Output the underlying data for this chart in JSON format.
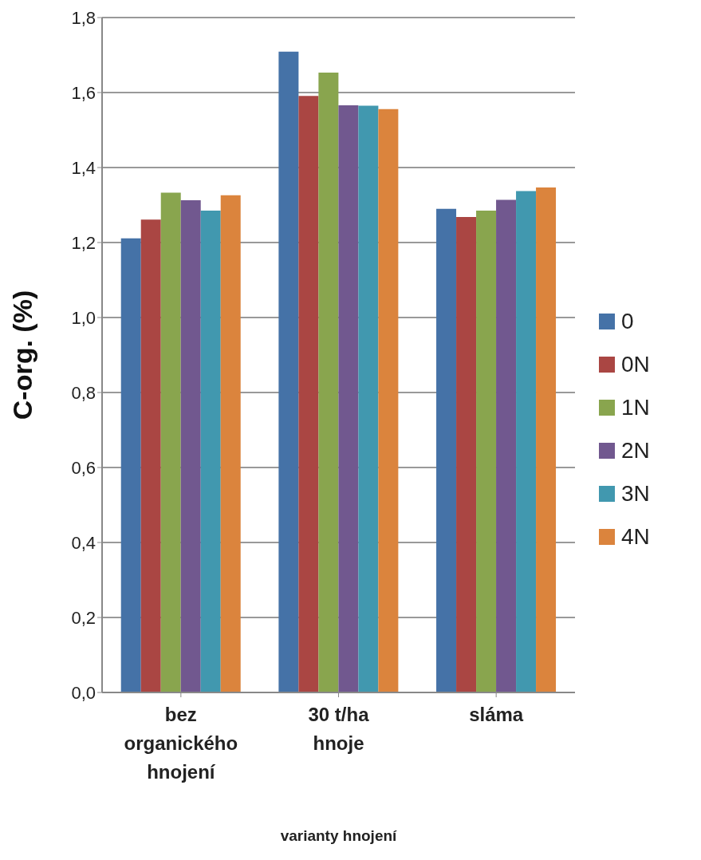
{
  "chart_data": {
    "type": "bar",
    "categories": [
      "bez organického hnojení",
      "30 t/ha hnoje",
      "sláma"
    ],
    "series": [
      {
        "name": "0",
        "color": "#4572a7",
        "values": [
          1.211,
          1.709,
          1.29
        ]
      },
      {
        "name": "0N",
        "color": "#aa4643",
        "values": [
          1.261,
          1.591,
          1.268
        ]
      },
      {
        "name": "1N",
        "color": "#89a54e",
        "values": [
          1.333,
          1.653,
          1.285
        ]
      },
      {
        "name": "2N",
        "color": "#71588f",
        "values": [
          1.313,
          1.566,
          1.314
        ]
      },
      {
        "name": "3N",
        "color": "#4198af",
        "values": [
          1.285,
          1.565,
          1.337
        ]
      },
      {
        "name": "4N",
        "color": "#db843d",
        "values": [
          1.326,
          1.556,
          1.347
        ]
      }
    ],
    "ylabel": "C-org. (%)",
    "xlabel": "varianty hnojení",
    "ylim": [
      0,
      1.8
    ],
    "yticks": [
      {
        "value": 0,
        "label": "0,0"
      },
      {
        "value": 0.2,
        "label": "0,2"
      },
      {
        "value": 0.4,
        "label": "0,4"
      },
      {
        "value": 0.6,
        "label": "0,6"
      },
      {
        "value": 0.8,
        "label": "0,8"
      },
      {
        "value": 1.0,
        "label": "1,0"
      },
      {
        "value": 1.2,
        "label": "1,2"
      },
      {
        "value": 1.4,
        "label": "1,4"
      },
      {
        "value": 1.6,
        "label": "1,6"
      },
      {
        "value": 1.8,
        "label": "1,8"
      }
    ],
    "grid": "y",
    "legend": "right"
  }
}
